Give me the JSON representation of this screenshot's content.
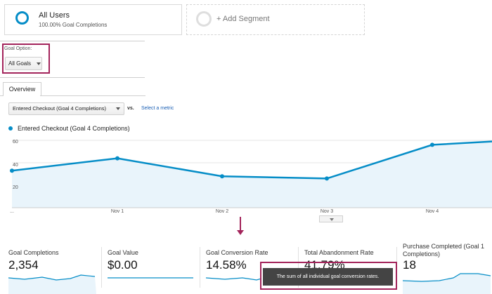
{
  "segments": {
    "active": {
      "name": "All Users",
      "subtitle": "100.00% Goal Completions"
    },
    "add_label": "+ Add Segment"
  },
  "goal_option": {
    "label": "Goal Option:",
    "selected": "All Goals"
  },
  "tabs": [
    {
      "label": "Overview",
      "active": true
    }
  ],
  "metric_selector": {
    "selected": "Entered Checkout (Goal 4 Completions)",
    "vs_label": "vs.",
    "select_metric_link": "Select a metric"
  },
  "colors": {
    "series": "#058dc7",
    "highlight": "#a3245b",
    "fill": "#e9f4fb"
  },
  "chart_data": {
    "type": "area",
    "series": [
      {
        "name": "Entered Checkout (Goal 4 Completions)",
        "points": [
          {
            "x": "",
            "y": 33
          },
          {
            "x": "",
            "y": 44
          },
          {
            "x": "",
            "y": 28
          },
          {
            "x": "",
            "y": 26
          },
          {
            "x": "",
            "y": 56
          },
          {
            "x": "",
            "y": 59
          }
        ]
      }
    ],
    "x_tick_labels": [
      "...",
      "Nov 1",
      "Nov 2",
      "Nov 3",
      "Nov 4"
    ],
    "y_tick_labels": [
      "60",
      "40",
      "20"
    ],
    "ylim": [
      0,
      65
    ],
    "grid": true
  },
  "scorecards": [
    {
      "title": "Goal Completions",
      "value": "2,354"
    },
    {
      "title": "Goal Value",
      "value": "$0.00"
    },
    {
      "title": "Goal Conversion Rate",
      "value": "14.58%"
    },
    {
      "title": "Total Abandonment Rate",
      "value": "41.79%"
    },
    {
      "title": "Purchase Completed (Goal 1 Completions)",
      "value": "18"
    }
  ],
  "tooltip": {
    "text": "The sum of all individual goal conversion rates."
  }
}
